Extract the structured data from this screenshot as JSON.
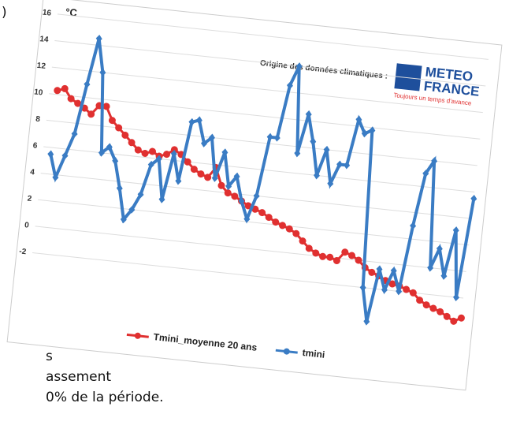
{
  "fragments": [
    ")",
    "s",
    "assement",
    "0% de la période."
  ],
  "chart_data": {
    "type": "line",
    "unit": "°C",
    "source_label": "Origine des données climatiques :",
    "logo": {
      "line1": "METEO",
      "line2": "FRANCE",
      "slogan": "Toujours un temps d'avance"
    },
    "categories": [
      null,
      null,
      null,
      null,
      null,
      null,
      null,
      null,
      null,
      null,
      null,
      null,
      null,
      null,
      null,
      null,
      null,
      null,
      null,
      null,
      null,
      null,
      null,
      null,
      null,
      null,
      null,
      null,
      null,
      null,
      null,
      null,
      null,
      null,
      null,
      null,
      null,
      null,
      null,
      null,
      null,
      null,
      null,
      null,
      null,
      null,
      null,
      null,
      null,
      null,
      null,
      null,
      null,
      null,
      null,
      null,
      null,
      null,
      null,
      null
    ],
    "series": [
      {
        "name": "Tmini_moyenne 20 ans",
        "color": "#e03030",
        "marker": "circle",
        "values": [
          10.3,
          10.5,
          9.8,
          9.5,
          9.2,
          8.8,
          9.5,
          9.5,
          8.5,
          8,
          7.5,
          7,
          6.5,
          6.3,
          6.5,
          6.2,
          6.4,
          6.8,
          6.5,
          6,
          5.5,
          5.2,
          5,
          5.8,
          4.5,
          4,
          3.8,
          3.5,
          3.2,
          3,
          2.8,
          2.5,
          2.2,
          2,
          1.8,
          1.5,
          1,
          0.5,
          0.2,
          0,
          0,
          -0.2,
          0.5,
          0.3,
          0,
          -0.5,
          -0.8,
          -1,
          -1.3,
          -1.5,
          -1.6,
          -1.8,
          -2,
          -2.5,
          -2.8,
          -3,
          -3.2,
          -3.5,
          -3.8,
          -3.5
        ]
      },
      {
        "name": "tmini",
        "color": "#3a7cc4",
        "marker": "diamond",
        "values": [
          5.5,
          3.8,
          5.5,
          7.2,
          11,
          14.5,
          12,
          6,
          6.5,
          5.5,
          3.5,
          1.2,
          2,
          3.2,
          5.5,
          6,
          3,
          6.5,
          4.5,
          9,
          9.2,
          7.5,
          8,
          5,
          7,
          4.5,
          5.3,
          3.5,
          2.2,
          4,
          8.5,
          8.5,
          12.5,
          14,
          7.5,
          10.5,
          8.5,
          6,
          8,
          5.5,
          7,
          7,
          10.5,
          9.5,
          9.8,
          -2,
          -4.5,
          -0.5,
          -2,
          -0.5,
          -2,
          3,
          7,
          8,
          0,
          1.5,
          -0.5,
          3,
          -2,
          5.5
        ]
      }
    ],
    "ylim": [
      -5,
      16
    ],
    "yticks": [
      -2,
      0,
      2,
      4,
      6,
      8,
      10,
      12,
      14,
      16
    ],
    "grid": true
  }
}
